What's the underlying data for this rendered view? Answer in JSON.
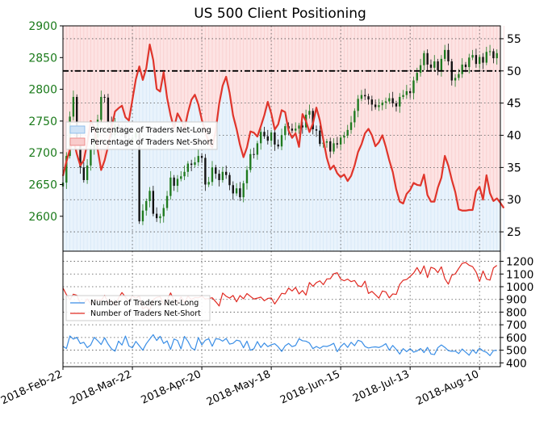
{
  "chart_data": {
    "type": "line",
    "title": "US 500 Client Positioning",
    "x_tick_labels": [
      "2018-Feb-22",
      "2018-Mar-22",
      "2018-Apr-20",
      "2018-May-18",
      "2018-Jun-15",
      "2018-Jul-13",
      "2018-Aug-10"
    ],
    "x_range": [
      0,
      126
    ],
    "x_ticks": [
      0,
      20,
      40,
      60,
      80,
      100,
      120
    ],
    "top_panel": {
      "price_axis": {
        "side": "left",
        "ylim": [
          2545,
          2900
        ],
        "ticks": [
          2600,
          2650,
          2700,
          2750,
          2800,
          2850,
          2900
        ]
      },
      "percent_axis": {
        "side": "right",
        "ylim": [
          22,
          57
        ],
        "ticks": [
          25,
          30,
          35,
          40,
          45,
          50,
          55
        ]
      },
      "reference_line": {
        "axis": "percent",
        "value": 50,
        "style": "dash-dot"
      },
      "legend": {
        "position": "center-left",
        "entries": [
          {
            "label": "Percentage of Traders Net-Long",
            "color": "#a9d0f5"
          },
          {
            "label": "Percentage of Traders Net-Short",
            "color": "#f5a9a9"
          }
        ]
      },
      "percent_net_short": [
        33.7,
        35.9,
        37.8,
        39.3,
        37.1,
        35.3,
        36.1,
        38.8,
        42.2,
        41.3,
        37.8,
        34.6,
        36.1,
        38.3,
        41.1,
        43.7,
        44.2,
        44.6,
        42.8,
        42.3,
        45.5,
        48.7,
        50.7,
        48.6,
        50.4,
        54.1,
        51.7,
        47.2,
        46.8,
        49.8,
        45.8,
        43.1,
        41.1,
        43.4,
        42.4,
        41.0,
        43.5,
        45.5,
        46.3,
        44.8,
        42.4,
        40.6,
        38.9,
        38.1,
        40.7,
        44.9,
        47.7,
        49.1,
        46.6,
        43.1,
        41.0,
        38.5,
        36.6,
        38.1,
        40.6,
        40.4,
        39.8,
        41.4,
        43.1,
        45.2,
        43.4,
        40.9,
        41.7,
        43.9,
        43.6,
        40.7,
        39.6,
        40.3,
        38.2,
        43.3,
        42.2,
        40.5,
        41.8,
        44.3,
        42.3,
        39.3,
        36.5,
        34.7,
        35.3,
        34.1,
        33.5,
        33.9,
        32.9,
        33.7,
        35.3,
        37.4,
        38.6,
        40.3,
        41.0,
        40.0,
        38.3,
        38.9,
        40.0,
        38.2,
        36.1,
        34.3,
        31.6,
        29.7,
        29.4,
        30.9,
        31.5,
        32.6,
        32.3,
        32.2,
        33.9,
        30.7,
        29.7,
        29.7,
        31.9,
        33.4,
        36.8,
        35.3,
        33.1,
        31.2,
        28.5,
        28.3,
        28.3,
        28.4,
        28.4,
        31.3,
        32.0,
        30.0,
        33.8,
        31.0,
        29.8,
        30.2,
        29.5,
        28.7
      ],
      "price_close": [
        2653,
        2695,
        2757,
        2788,
        2724,
        2677,
        2657,
        2680,
        2707,
        2724,
        2752,
        2788,
        2787,
        2749,
        2728,
        2745,
        2738,
        2736,
        2723,
        2720,
        2724,
        2733,
        2592,
        2609,
        2624,
        2640,
        2604,
        2597,
        2600,
        2613,
        2632,
        2661,
        2648,
        2659,
        2663,
        2670,
        2683,
        2681,
        2685,
        2695,
        2692,
        2650,
        2654,
        2677,
        2667,
        2657,
        2670,
        2665,
        2649,
        2636,
        2644,
        2630,
        2652,
        2673,
        2698,
        2697,
        2715,
        2733,
        2726,
        2719,
        2732,
        2713,
        2710,
        2728,
        2742,
        2738,
        2735,
        2738,
        2743,
        2740,
        2760,
        2766,
        2737,
        2735,
        2714,
        2716,
        2718,
        2702,
        2715,
        2713,
        2724,
        2727,
        2736,
        2748,
        2766,
        2785,
        2791,
        2789,
        2784,
        2776,
        2772,
        2775,
        2779,
        2781,
        2786,
        2778,
        2773,
        2788,
        2791,
        2797,
        2794,
        2814,
        2826,
        2838,
        2857,
        2839,
        2834,
        2844,
        2830,
        2848,
        2862,
        2844,
        2814,
        2818,
        2824,
        2839,
        2835,
        2850,
        2854,
        2840,
        2851,
        2842,
        2859,
        2860,
        2849,
        2857
      ]
    },
    "bottom_panel": {
      "count_axis": {
        "side": "right",
        "ylim": [
          370,
          1280
        ],
        "ticks": [
          400,
          500,
          600,
          700,
          800,
          900,
          1000,
          1100,
          1200
        ]
      },
      "legend": {
        "position": "center-left",
        "entries": [
          {
            "label": "Number of Traders Net-Long",
            "color": "#3a8ee6"
          },
          {
            "label": "Number of Traders Net-Short",
            "color": "#e02a22"
          }
        ]
      },
      "series": [
        {
          "name": "Number of Traders Net-Long",
          "values": [
            530,
            513,
            612,
            587,
            601,
            552,
            562,
            520,
            541,
            601,
            575,
            544,
            598,
            548,
            510,
            492,
            571,
            540,
            611,
            533,
            518,
            569,
            535,
            500,
            551,
            587,
            622,
            576,
            609,
            553,
            573,
            506,
            588,
            576,
            510,
            608,
            570,
            518,
            501,
            600,
            541,
            578,
            590,
            531,
            590,
            587,
            571,
            592,
            548,
            554,
            579,
            572,
            519,
            571,
            499,
            511,
            568,
            521,
            556,
            528,
            542,
            551,
            526,
            490,
            534,
            553,
            528,
            537,
            590,
            574,
            571,
            556,
            512,
            529,
            514,
            532,
            529,
            539,
            554,
            488,
            528,
            554,
            522,
            562,
            535,
            578,
            568,
            529,
            517,
            523,
            526,
            521,
            533,
            551,
            500,
            537,
            506,
            469,
            512,
            488,
            512,
            484,
            493,
            513,
            481,
            522,
            470,
            465,
            520,
            541,
            522,
            496,
            491,
            493,
            473,
            509,
            484,
            460,
            503,
            475,
            516,
            494,
            483,
            457,
            497,
            498
          ]
        },
        {
          "name": "Number of Traders Net-Short",
          "values": [
            990,
            938,
            898,
            941,
            933,
            870,
            869,
            904,
            866,
            895,
            897,
            891,
            932,
            873,
            889,
            852,
            911,
            954,
            919,
            886,
            928,
            907,
            929,
            825,
            844,
            816,
            900,
            916,
            922,
            859,
            894,
            951,
            895,
            868,
            920,
            873,
            926,
            898,
            915,
            913,
            925,
            903,
            907,
            913,
            882,
            848,
            950,
            925,
            910,
            931,
            881,
            930,
            905,
            946,
            924,
            903,
            910,
            918,
            889,
            908,
            911,
            864,
            904,
            948,
            943,
            989,
            966,
            994,
            943,
            970,
            934,
            1033,
            1003,
            1032,
            1046,
            1016,
            1061,
            1063,
            1102,
            1110,
            1060,
            1047,
            1060,
            1040,
            1049,
            1008,
            1000,
            1044,
            947,
            963,
            937,
            910,
            966,
            959,
            912,
            943,
            939,
            1018,
            1051,
            1057,
            1081,
            1107,
            1151,
            1102,
            1164,
            1072,
            1153,
            1143,
            1111,
            1157,
            1063,
            1020,
            1090,
            1101,
            1144,
            1184,
            1191,
            1169,
            1158,
            1116,
            1041,
            1124,
            1060,
            1052,
            1148,
            1168
          ]
        }
      ]
    }
  }
}
